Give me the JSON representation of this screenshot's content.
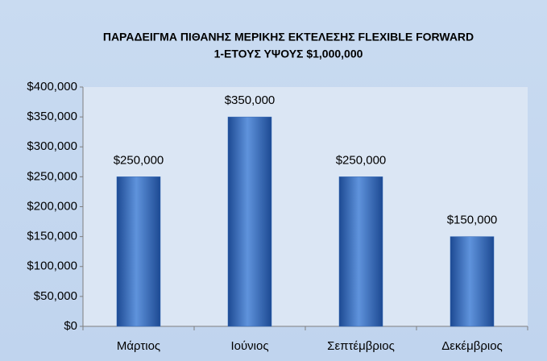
{
  "chart_data": {
    "type": "bar",
    "title": [
      "ΠΑΡΑΔΕΙΓΜΑ ΠΙΘΑΝΗΣ ΜΕΡΙΚΗΣ ΕΚΤΕΛΕΣΗΣ FLEXIBLE FORWARD",
      "1-ΕΤΟΥΣ ΥΨΟΥΣ $1,000,000"
    ],
    "categories": [
      "Μάρτιος",
      "Ιούνιος",
      "Σεπτέμβριος",
      "Δεκέμβριος"
    ],
    "values": [
      250000,
      350000,
      250000,
      150000
    ],
    "value_labels": [
      "$250,000",
      "$350,000",
      "$250,000",
      "$150,000"
    ],
    "color": "#2f64b4",
    "ylim": [
      0,
      400000
    ],
    "yticks": [
      {
        "value": 0,
        "label": "$0"
      },
      {
        "value": 50000,
        "label": "$50,000"
      },
      {
        "value": 100000,
        "label": "$100,000"
      },
      {
        "value": 150000,
        "label": "$150,000"
      },
      {
        "value": 200000,
        "label": "$200,000"
      },
      {
        "value": 250000,
        "label": "$250,000"
      },
      {
        "value": 300000,
        "label": "$300,000"
      },
      {
        "value": 350000,
        "label": "$350,000"
      },
      {
        "value": 400000,
        "label": "$400,000"
      }
    ],
    "grid": false
  }
}
